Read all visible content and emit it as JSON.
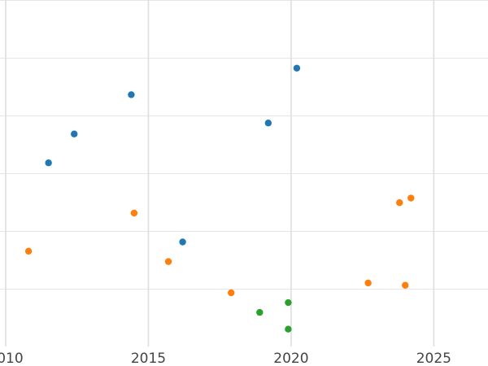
{
  "chart_data": {
    "type": "scatter",
    "title": "",
    "xlabel": "",
    "ylabel": "",
    "xlim": [
      2009.8,
      2026.9
    ],
    "ylim": [
      0,
      6
    ],
    "x_ticks": [
      2010,
      2015,
      2020,
      2025
    ],
    "x_tick_labels": [
      "2010",
      "2015",
      "2020",
      "2025"
    ],
    "y_ticks": [
      1,
      2,
      3,
      4,
      5,
      6
    ],
    "y_tick_labels": [],
    "grid": true,
    "legend": "none",
    "series": [
      {
        "color": "#1f77b4",
        "points": [
          {
            "x": 2011.5,
            "y": 3.18
          },
          {
            "x": 2012.4,
            "y": 3.68
          },
          {
            "x": 2014.4,
            "y": 4.36
          },
          {
            "x": 2016.2,
            "y": 1.81
          },
          {
            "x": 2019.2,
            "y": 3.87
          },
          {
            "x": 2020.2,
            "y": 4.82
          }
        ]
      },
      {
        "color": "#ff7f0e",
        "points": [
          {
            "x": 2010.8,
            "y": 1.65
          },
          {
            "x": 2014.5,
            "y": 2.31
          },
          {
            "x": 2015.7,
            "y": 1.47
          },
          {
            "x": 2017.9,
            "y": 0.93
          },
          {
            "x": 2022.7,
            "y": 1.1
          },
          {
            "x": 2023.8,
            "y": 2.49
          },
          {
            "x": 2024.0,
            "y": 1.06
          },
          {
            "x": 2024.2,
            "y": 2.57
          }
        ]
      },
      {
        "color": "#2ca02c",
        "points": [
          {
            "x": 2018.9,
            "y": 0.59
          },
          {
            "x": 2019.9,
            "y": 0.76
          },
          {
            "x": 2019.9,
            "y": 0.3
          }
        ]
      }
    ]
  }
}
